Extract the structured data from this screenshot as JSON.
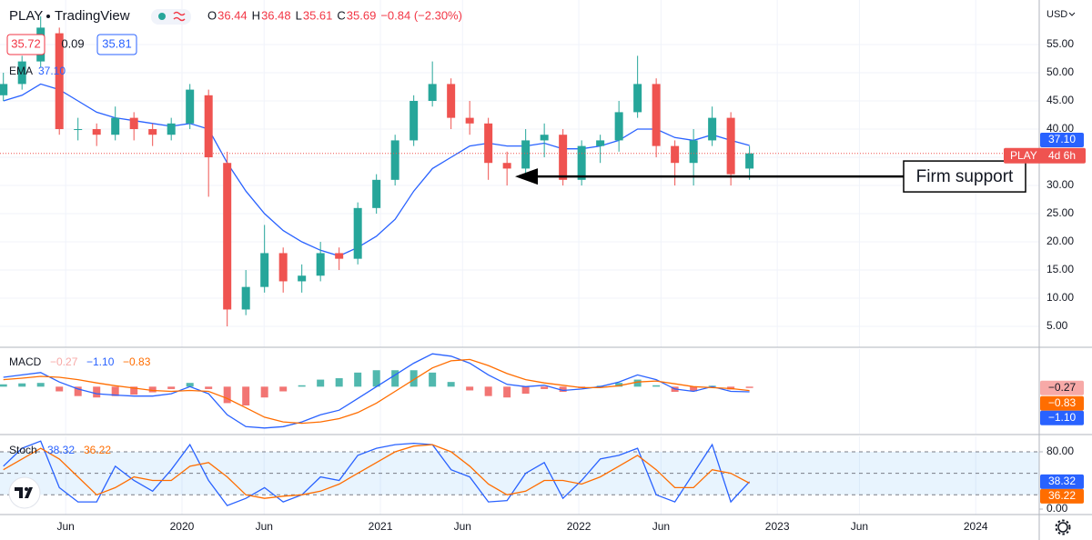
{
  "header": {
    "symbol": "PLAY",
    "source": "TradingView",
    "ohlc": [
      {
        "label": "O",
        "value": "36.44"
      },
      {
        "label": "H",
        "value": "36.48"
      },
      {
        "label": "L",
        "value": "35.61"
      },
      {
        "label": "C",
        "value": "35.69"
      }
    ],
    "change": "−0.84 (−2.30%)",
    "bid": "35.72",
    "spread": "0.09",
    "ask": "35.81"
  },
  "chart_data": {
    "type": "candlestick",
    "currency": "USD",
    "x": [
      2019.1,
      2019.194,
      2019.288,
      2019.382,
      2019.476,
      2019.57,
      2019.664,
      2019.758,
      2019.852,
      2019.946,
      2020.04,
      2020.134,
      2020.228,
      2020.322,
      2020.416,
      2020.51,
      2020.604,
      2020.698,
      2020.792,
      2020.886,
      2020.98,
      2021.074,
      2021.168,
      2021.262,
      2021.356,
      2021.45,
      2021.544,
      2021.638,
      2021.732,
      2021.826,
      2021.92,
      2022.014,
      2022.108,
      2022.202,
      2022.296,
      2022.39,
      2022.484,
      2022.578,
      2022.672,
      2022.766,
      2022.86
    ],
    "open": [
      46,
      48,
      52,
      57,
      40,
      40,
      39,
      42,
      40,
      39,
      41,
      46,
      34,
      8,
      12,
      18,
      13,
      14,
      18,
      17,
      26,
      31,
      38,
      45,
      48,
      42,
      41,
      34,
      33,
      38,
      39,
      31,
      37,
      38,
      43,
      48,
      37,
      34,
      38,
      42,
      33
    ],
    "high": [
      50,
      53,
      60,
      58,
      42,
      41,
      44,
      43,
      41,
      42,
      48,
      47,
      36,
      15,
      23,
      19,
      16,
      20,
      19,
      27,
      32,
      39,
      46,
      52,
      49,
      45,
      42,
      36,
      40,
      41,
      40,
      38,
      39,
      45,
      53,
      49,
      38,
      40,
      44,
      43,
      37
    ],
    "low": [
      45,
      47,
      51,
      39,
      38,
      37,
      38,
      38,
      37,
      38,
      40,
      28,
      5,
      7,
      11,
      11,
      11,
      13,
      15,
      16,
      25,
      30,
      37,
      44,
      40,
      39,
      31,
      30,
      32,
      35,
      30,
      30,
      34,
      36,
      42,
      35,
      30,
      30,
      37,
      30,
      31
    ],
    "close": [
      48,
      52,
      58,
      40,
      40,
      39,
      42,
      40,
      39,
      41,
      47,
      35,
      8,
      12,
      18,
      13,
      14,
      18,
      17,
      26,
      31,
      38,
      45,
      48,
      42,
      41,
      34,
      33,
      38,
      39,
      31,
      37,
      38,
      43,
      48,
      37,
      34,
      38,
      42,
      32,
      35.69
    ],
    "up_color": "#26a69a",
    "down_color": "#ef5350",
    "xlim": [
      2019.083,
      2024.32
    ],
    "xticks": [
      {
        "value": 2019.414,
        "label": "Jun"
      },
      2020,
      {
        "value": 2020.414,
        "label": "Jun"
      },
      2021,
      {
        "value": 2021.414,
        "label": "Jun"
      },
      2022,
      {
        "value": 2022.414,
        "label": "Jun"
      },
      2023,
      {
        "value": 2023.414,
        "label": "Jun"
      },
      2024
    ],
    "ylim": [
      1.3,
      62.9
    ],
    "yticks": [
      {
        "value": 5,
        "label": "5.00"
      },
      {
        "value": 10,
        "label": "10.00"
      },
      {
        "value": 15,
        "label": "15.00"
      },
      {
        "value": 20,
        "label": "20.00"
      },
      {
        "value": 25,
        "label": "25.00"
      },
      {
        "value": 30,
        "label": "30.00"
      },
      {
        "value": 35,
        "label": "35.00"
      },
      {
        "value": 40,
        "label": "40.00"
      },
      {
        "value": 45,
        "label": "45.00"
      },
      {
        "value": 50,
        "label": "50.00"
      },
      {
        "value": 55,
        "label": "55.00"
      }
    ],
    "grid": true,
    "last_price_label": {
      "symbol": "PLAY",
      "countdown": "4d 6h"
    },
    "ema": {
      "name": "EMA",
      "legend": "37.10",
      "color": "#2962ff",
      "values": [
        45,
        46,
        48,
        47,
        45,
        43,
        42,
        41.5,
        41,
        40.5,
        41,
        40,
        34,
        29,
        25,
        22,
        20,
        18.5,
        17.5,
        19,
        21,
        24,
        29,
        33,
        35,
        37,
        37.5,
        37,
        37,
        37.5,
        36.5,
        36.5,
        37,
        38,
        40,
        40,
        38.5,
        38,
        39,
        38,
        37.1
      ]
    },
    "annotation": {
      "text": "Firm support",
      "level": 31.6
    },
    "macd": {
      "name": "MACD",
      "legend": [
        "−0.27",
        "−1.10",
        "−0.83"
      ],
      "ylim": [
        -10,
        8
      ],
      "macd": {
        "color": "#2962ff",
        "values": [
          2,
          2.5,
          3,
          1,
          -0.5,
          -1.5,
          -1.8,
          -2,
          -2,
          -1.5,
          0,
          -1.5,
          -6,
          -8.5,
          -8.8,
          -8.5,
          -7.5,
          -6,
          -5,
          -2.5,
          0,
          2.5,
          5,
          7,
          6.5,
          5,
          2.5,
          0.5,
          0,
          0.3,
          -0.8,
          -0.5,
          0,
          1,
          2.5,
          1.5,
          -0.5,
          -1,
          0,
          -1,
          -1.1
        ]
      },
      "signal": {
        "color": "#ff6d00",
        "values": [
          1.5,
          1.8,
          2.2,
          2,
          1.5,
          0.8,
          0.2,
          -0.3,
          -0.8,
          -1,
          -0.8,
          -1,
          -2.5,
          -4.5,
          -6.5,
          -7.5,
          -7.8,
          -7.5,
          -6.8,
          -5.5,
          -3.5,
          -1,
          1.5,
          4,
          5.5,
          5.8,
          4.5,
          2.8,
          1.5,
          0.8,
          0.3,
          -0.2,
          -0.2,
          0.2,
          1,
          1.2,
          0.6,
          0,
          -0.2,
          -0.4,
          -0.83
        ]
      },
      "histogram": {
        "up_color": "#26a69a",
        "down_color": "#ef5350",
        "last_color": "#f7a9a7",
        "values": [
          0.5,
          0.7,
          0.8,
          -1,
          -2,
          -2.3,
          -2,
          -1.7,
          -1.2,
          -0.5,
          0.8,
          -0.5,
          -3.5,
          -4,
          -2.3,
          -1,
          0.3,
          1.5,
          1.8,
          3,
          3.5,
          3.5,
          3.5,
          3,
          1,
          -0.8,
          -2,
          -2.3,
          -1.5,
          -0.5,
          -1.1,
          -0.3,
          0.2,
          0.8,
          1.5,
          0.3,
          -1.1,
          -1,
          0.2,
          -0.6,
          -0.27
        ]
      }
    },
    "stoch": {
      "name": "Stoch",
      "legend": [
        "38.32",
        "36.22"
      ],
      "ylim": [
        -7.6,
        101.6
      ],
      "yticks": [
        {
          "value": 80,
          "label": "80.00"
        },
        {
          "value": 0,
          "label": "0.00"
        }
      ],
      "band": [
        20,
        80
      ],
      "mid": 50,
      "k": {
        "color": "#2962ff",
        "values": [
          60,
          85,
          95,
          30,
          10,
          10,
          60,
          40,
          25,
          55,
          90,
          40,
          5,
          15,
          30,
          10,
          20,
          45,
          40,
          75,
          85,
          90,
          92,
          90,
          55,
          45,
          10,
          12,
          50,
          65,
          15,
          40,
          70,
          75,
          85,
          20,
          10,
          50,
          90,
          10,
          38.32
        ]
      },
      "d": {
        "color": "#ff6d00",
        "values": [
          55,
          70,
          85,
          70,
          45,
          20,
          30,
          45,
          40,
          40,
          60,
          65,
          45,
          20,
          15,
          18,
          20,
          25,
          35,
          50,
          65,
          80,
          88,
          90,
          80,
          60,
          35,
          20,
          25,
          40,
          40,
          35,
          45,
          60,
          75,
          55,
          30,
          30,
          55,
          50,
          36.22
        ]
      }
    }
  }
}
